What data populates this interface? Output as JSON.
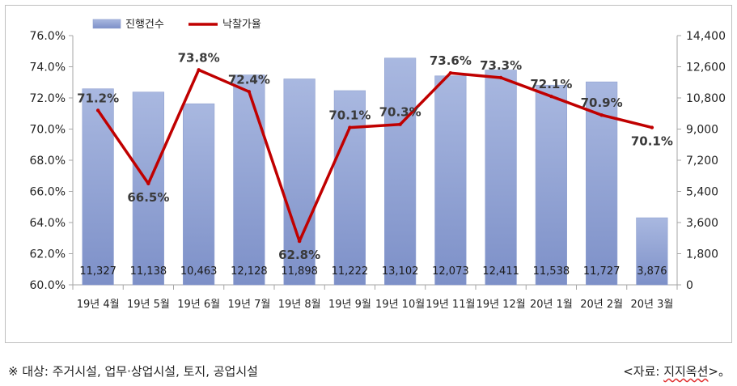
{
  "chart_data": {
    "type": "bar+line",
    "categories": [
      "19년 4월",
      "19년 5월",
      "19년 6월",
      "19년 7월",
      "19년 8월",
      "19년 9월",
      "19년 10월",
      "19년 11월",
      "19년 12월",
      "20년 1월",
      "20년 2월",
      "20년 3월"
    ],
    "series": [
      {
        "name": "진행건수",
        "type": "bar",
        "axis": "right",
        "values": [
          11327,
          11138,
          10463,
          12128,
          11898,
          11222,
          13102,
          12073,
          12411,
          11538,
          11727,
          3876
        ],
        "labels": [
          "11,327",
          "11,138",
          "10,463",
          "12,128",
          "11,898",
          "11,222",
          "13,102",
          "12,073",
          "12,411",
          "11,538",
          "11,727",
          "3,876"
        ],
        "color": "#8fa2d4"
      },
      {
        "name": "낙찰가율",
        "type": "line",
        "axis": "left",
        "values": [
          71.2,
          66.5,
          73.8,
          72.4,
          62.8,
          70.1,
          70.3,
          73.6,
          73.3,
          72.1,
          70.9,
          70.1
        ],
        "labels": [
          "71.2%",
          "66.5%",
          "73.8%",
          "72.4%",
          "62.8%",
          "70.1%",
          "70.3%",
          "73.6%",
          "73.3%",
          "72.1%",
          "70.9%",
          "70.1%"
        ],
        "color": "#c00000"
      }
    ],
    "y_left": {
      "min": 60,
      "max": 76,
      "ticks": [
        "60.0%",
        "62.0%",
        "64.0%",
        "66.0%",
        "68.0%",
        "70.0%",
        "72.0%",
        "74.0%",
        "76.0%"
      ]
    },
    "y_right": {
      "min": 0,
      "max": 14400,
      "ticks": [
        "0",
        "1,800",
        "3,600",
        "5,400",
        "7,200",
        "9,000",
        "10,800",
        "12,600",
        "14,400"
      ]
    },
    "legend_position": "top-left",
    "grid": false
  },
  "footnote": {
    "note": "※ 대상: 주거시설, 업무·상업시설, 토지, 공업시설",
    "source_open": "<자료: ",
    "source_name": "지지옥션",
    "source_close": ">",
    "source_tail": "。"
  }
}
